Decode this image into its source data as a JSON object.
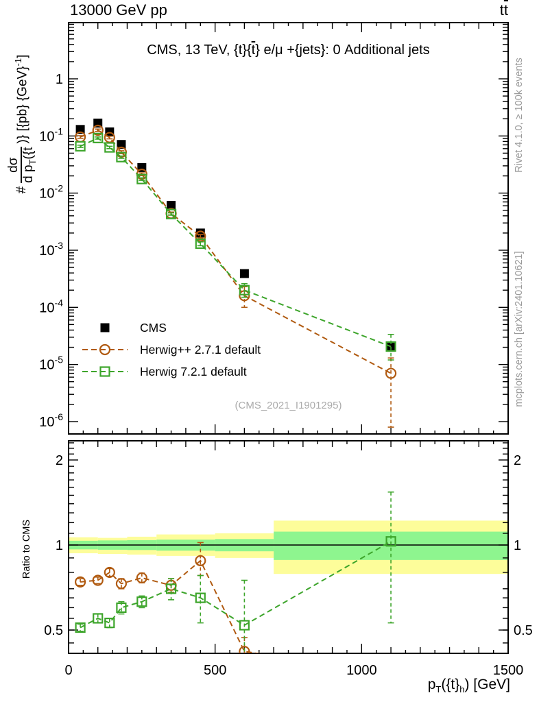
{
  "header": {
    "beam_label": "13000 GeV pp",
    "process_t1": "t",
    "process_t2": "t"
  },
  "panel_title": {
    "pre": "CMS, 13 TeV, {t}{",
    "tbar": "t",
    "post": "} e/μ +{jets}: 0 Additional jets"
  },
  "watermark": "(CMS_2021_I1901295)",
  "side_notes": {
    "top": "Rivet 4.1.0, ≥ 100k events",
    "bottom": "mcplots.cern.ch [arXiv:2401.10621]"
  },
  "axis_labels": {
    "y_prefix": "#",
    "y_numerator": "dσ",
    "y_den_base": "d p",
    "y_den_sub": "T",
    "y_den_post": "({t",
    "y_suffix": ")} [{pb} {GeV}",
    "y_sup": "-1",
    "y_close": "]",
    "x_base": "p",
    "x_sub": "T",
    "x_mid": "({t}",
    "x_sub2": "h",
    "x_end": ") [GeV]",
    "ratio": "Ratio to CMS"
  },
  "chart_data": {
    "type": "scatter",
    "title": "CMS, 13 TeV, {t}{t} e/mu +{jets}: 0 Additional jets",
    "xlabel": "pT({t}h) [GeV]",
    "ylabel": "# dsigma/d pT({t)} [{pb} {GeV}^-1]",
    "ratio_ylabel": "Ratio to CMS",
    "x_range": [
      0,
      1500
    ],
    "main_y_log_range": [
      -6.22,
      0.98
    ],
    "ratio_y_log_range": [
      -0.383,
      0.369
    ],
    "grid": false,
    "legend_position": "left-middle",
    "x": [
      40,
      100,
      140,
      180,
      250,
      350,
      450,
      600,
      1100
    ],
    "series": [
      {
        "name": "CMS",
        "marker": "filled-square",
        "color": "#000000",
        "line": false,
        "values": [
          0.13,
          0.168,
          0.118,
          0.071,
          0.028,
          0.0061,
          0.002,
          0.00039,
          2e-05
        ],
        "yerr_lo": [
          0,
          0,
          0,
          0,
          0,
          0,
          0,
          0,
          0
        ],
        "yerr_hi": [
          0,
          0,
          0,
          0,
          0,
          0,
          0,
          0,
          0
        ]
      },
      {
        "name": "Herwig++ 2.7.1 default",
        "marker": "open-circle",
        "color": "#b05a10",
        "line": true,
        "values": [
          0.096,
          0.126,
          0.094,
          0.052,
          0.0214,
          0.0044,
          0.00176,
          0.00016,
          7e-06
        ],
        "yerr_lo": [
          0.005,
          0.006,
          0.005,
          0.003,
          0.0012,
          0.00025,
          0.00012,
          6e-05,
          6.2e-06
        ],
        "yerr_hi": [
          0.005,
          0.006,
          0.005,
          0.003,
          0.0012,
          0.00025,
          0.00012,
          7e-05,
          6e-06
        ]
      },
      {
        "name": "Herwig 7.2.1 default",
        "marker": "open-square",
        "color": "#3da52b",
        "line": true,
        "values": [
          0.066,
          0.092,
          0.063,
          0.0426,
          0.0176,
          0.0043,
          0.0013,
          0.0002,
          2.06e-05
        ],
        "yerr_lo": [
          0.003,
          0.004,
          0.003,
          0.002,
          0.0009,
          0.0002,
          0.0001,
          5e-05,
          8.6e-06
        ],
        "yerr_hi": [
          0.003,
          0.004,
          0.003,
          0.002,
          0.0009,
          0.0002,
          0.0001,
          6e-05,
          1.3e-05
        ]
      }
    ],
    "ratio_series": [
      {
        "name": "Herwig++ 2.7.1 default",
        "marker": "open-circle",
        "color": "#b05a10",
        "values": [
          0.74,
          0.75,
          0.8,
          0.73,
          0.765,
          0.72,
          0.88,
          0.42,
          0.35
        ],
        "yerr_lo": [
          0.02,
          0.02,
          0.025,
          0.03,
          0.03,
          0.04,
          0.1,
          0.05,
          0
        ],
        "yerr_hi": [
          0.02,
          0.02,
          0.025,
          0.03,
          0.03,
          0.04,
          0.14,
          0.05,
          0
        ]
      },
      {
        "name": "Herwig 7.2.1 default",
        "marker": "open-square",
        "color": "#3da52b",
        "values": [
          0.51,
          0.55,
          0.53,
          0.6,
          0.63,
          0.7,
          0.65,
          0.52,
          1.03
        ],
        "yerr_lo": [
          0.015,
          0.02,
          0.02,
          0.03,
          0.03,
          0.06,
          0.12,
          0.13,
          0.5
        ],
        "yerr_hi": [
          0.015,
          0.02,
          0.02,
          0.03,
          0.03,
          0.06,
          0.13,
          0.23,
          0.51
        ]
      }
    ],
    "ratio_reference": 1,
    "bands": {
      "yellow_color": "#fdfd9a",
      "green_color": "#8ef58f",
      "segments": [
        {
          "x0": 0,
          "x1": 100,
          "yellow": [
            0.935,
            1.065
          ],
          "green": [
            0.965,
            1.035
          ]
        },
        {
          "x0": 100,
          "x1": 200,
          "yellow": [
            0.93,
            1.06
          ],
          "green": [
            0.962,
            1.038
          ]
        },
        {
          "x0": 200,
          "x1": 300,
          "yellow": [
            0.925,
            1.07
          ],
          "green": [
            0.96,
            1.04
          ]
        },
        {
          "x0": 300,
          "x1": 500,
          "yellow": [
            0.915,
            1.09
          ],
          "green": [
            0.955,
            1.045
          ]
        },
        {
          "x0": 500,
          "x1": 700,
          "yellow": [
            0.9,
            1.1
          ],
          "green": [
            0.95,
            1.05
          ]
        },
        {
          "x0": 700,
          "x1": 1500,
          "yellow": [
            0.79,
            1.22
          ],
          "green": [
            0.885,
            1.115
          ]
        }
      ]
    },
    "xticks": [
      {
        "v": 0,
        "label": "0"
      },
      {
        "v": 500,
        "label": "500"
      },
      {
        "v": 1000,
        "label": "1000"
      },
      {
        "v": 1500,
        "label": "1500"
      }
    ],
    "main_yticks": [
      {
        "v": 1,
        "label": "1"
      },
      {
        "v": 0.1,
        "base": "10",
        "exp": "-1"
      },
      {
        "v": 0.01,
        "base": "10",
        "exp": "-2"
      },
      {
        "v": 0.001,
        "base": "10",
        "exp": "-3"
      },
      {
        "v": 0.0001,
        "base": "10",
        "exp": "-4"
      },
      {
        "v": 1e-05,
        "base": "10",
        "exp": "-5"
      },
      {
        "v": 1e-06,
        "base": "10",
        "exp": "-6"
      }
    ],
    "ratio_yticks": [
      {
        "v": 2,
        "label": "2"
      },
      {
        "v": 1,
        "label": "1"
      },
      {
        "v": 0.5,
        "label": "0.5"
      }
    ]
  }
}
